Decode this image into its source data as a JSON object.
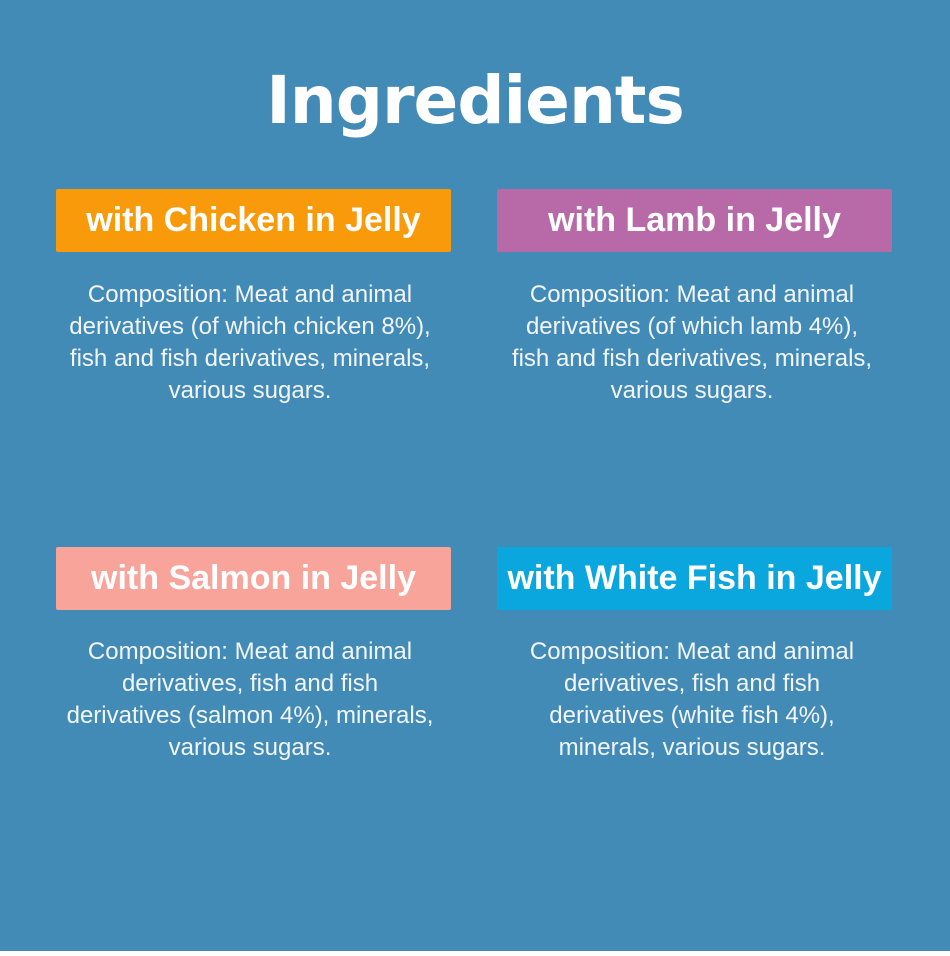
{
  "title": "Ingredients",
  "colors": {
    "background": "#438bb7",
    "chicken": "#f99a0a",
    "lamb": "#b86aa8",
    "salmon": "#f8a49a",
    "white_fish": "#0aa7de"
  },
  "variants": [
    {
      "label": "with Chicken in Jelly",
      "lines": [
        "Composition: Meat and animal",
        "derivatives (of which chicken 8%),",
        "fish and fish derivatives, minerals,",
        "various sugars."
      ]
    },
    {
      "label": "with Lamb in Jelly",
      "lines": [
        "Composition: Meat and animal",
        "derivatives (of which lamb 4%),",
        "fish and fish derivatives, minerals,",
        "various sugars."
      ]
    },
    {
      "label": "with Salmon in Jelly",
      "lines": [
        "Composition: Meat and animal",
        "derivatives, fish and fish",
        "derivatives (salmon 4%), minerals,",
        "various sugars."
      ]
    },
    {
      "label": "with White Fish in Jelly",
      "lines": [
        "Composition: Meat and animal",
        "derivatives, fish and fish",
        "derivatives (white fish 4%),",
        "minerals, various sugars."
      ]
    }
  ]
}
